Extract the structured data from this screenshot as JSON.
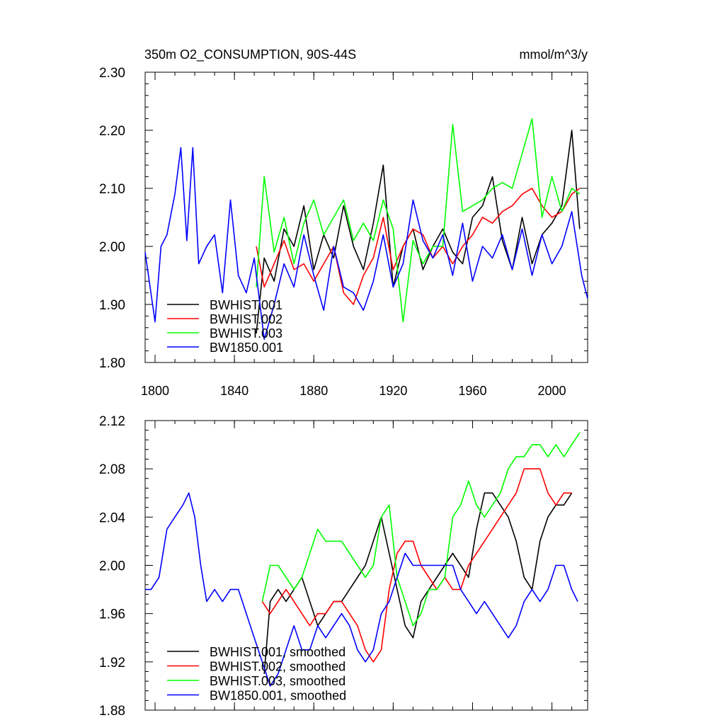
{
  "figure": {
    "title_left": "350m O2_CONSUMPTION, 90S-44S",
    "title_right": "mmol/m^3/y"
  },
  "chart_data": [
    {
      "type": "line",
      "xlim": [
        1795,
        2018
      ],
      "ylim": [
        1.8,
        2.3
      ],
      "xticks": [
        1800,
        1840,
        1880,
        1920,
        1960,
        2000
      ],
      "xtick_labels": [
        "1800",
        "1840",
        "1880",
        "1920",
        "1960",
        "2000"
      ],
      "yticks": [
        1.8,
        1.9,
        2.0,
        2.1,
        2.2,
        2.3
      ],
      "ytick_labels": [
        "1.80",
        "1.90",
        "2.00",
        "2.10",
        "2.20",
        "2.30"
      ],
      "legend_position": "bottom-left",
      "series": [
        {
          "name": "BWHIST.001",
          "color": "#000000",
          "x": [
            1851,
            1855,
            1860,
            1865,
            1870,
            1875,
            1880,
            1885,
            1890,
            1895,
            1900,
            1905,
            1910,
            1915,
            1920,
            1925,
            1930,
            1935,
            1940,
            1945,
            1950,
            1955,
            1960,
            1965,
            1970,
            1975,
            1980,
            1985,
            1990,
            1995,
            2000,
            2005,
            2010,
            2014
          ],
          "y": [
            1.85,
            1.98,
            1.94,
            2.03,
            2.0,
            2.07,
            1.96,
            2.02,
            1.98,
            2.07,
            2.0,
            1.96,
            2.04,
            2.14,
            1.93,
            2.0,
            2.03,
            1.96,
            2.0,
            2.03,
            1.99,
            1.97,
            2.05,
            2.07,
            2.12,
            2.01,
            1.96,
            2.05,
            1.97,
            2.02,
            2.04,
            2.07,
            2.2,
            2.03
          ]
        },
        {
          "name": "BWHIST.002",
          "color": "#ff0000",
          "x": [
            1851,
            1855,
            1860,
            1865,
            1870,
            1875,
            1880,
            1885,
            1890,
            1895,
            1900,
            1905,
            1910,
            1915,
            1920,
            1925,
            1930,
            1935,
            1940,
            1945,
            1950,
            1955,
            1960,
            1965,
            1970,
            1975,
            1980,
            1985,
            1990,
            1995,
            2000,
            2005,
            2010,
            2014
          ],
          "y": [
            2.0,
            1.93,
            1.97,
            2.01,
            1.96,
            1.97,
            1.94,
            1.97,
            2.0,
            1.92,
            1.9,
            1.95,
            1.98,
            2.05,
            1.96,
            2.0,
            2.03,
            2.02,
            1.98,
            2.0,
            1.97,
            2.0,
            2.02,
            2.05,
            2.04,
            2.06,
            2.07,
            2.09,
            2.1,
            2.07,
            2.05,
            2.06,
            2.09,
            2.1
          ]
        },
        {
          "name": "BWHIST.003",
          "color": "#00ff00",
          "x": [
            1851,
            1855,
            1860,
            1865,
            1870,
            1875,
            1880,
            1885,
            1890,
            1895,
            1900,
            1905,
            1910,
            1915,
            1920,
            1925,
            1930,
            1935,
            1940,
            1945,
            1950,
            1955,
            1960,
            1965,
            1970,
            1975,
            1980,
            1985,
            1990,
            1995,
            2000,
            2005,
            2010,
            2014
          ],
          "y": [
            1.93,
            2.12,
            1.99,
            2.05,
            1.97,
            2.04,
            2.08,
            2.02,
            2.05,
            2.08,
            2.01,
            2.04,
            2.01,
            2.08,
            2.03,
            1.87,
            2.01,
            1.97,
            2.0,
            2.0,
            2.21,
            2.06,
            2.07,
            2.08,
            2.1,
            2.11,
            2.1,
            2.16,
            2.22,
            2.05,
            2.12,
            2.06,
            2.1,
            2.09
          ]
        },
        {
          "name": "BW1850.001",
          "color": "#0000ff",
          "x": [
            1795,
            1800,
            1803,
            1806,
            1810,
            1813,
            1816,
            1819,
            1822,
            1826,
            1830,
            1834,
            1838,
            1842,
            1846,
            1850,
            1855,
            1860,
            1865,
            1870,
            1875,
            1880,
            1885,
            1890,
            1895,
            1900,
            1905,
            1910,
            1915,
            1920,
            1925,
            1930,
            1935,
            1940,
            1945,
            1950,
            1955,
            1960,
            1965,
            1970,
            1975,
            1980,
            1985,
            1990,
            1995,
            2000,
            2005,
            2010,
            2015,
            2018
          ],
          "y": [
            1.99,
            1.87,
            2.0,
            2.02,
            2.09,
            2.17,
            2.01,
            2.17,
            1.97,
            2.0,
            2.02,
            1.92,
            2.08,
            1.95,
            1.92,
            1.98,
            1.84,
            1.9,
            1.97,
            1.93,
            2.02,
            1.95,
            1.89,
            2.0,
            1.93,
            1.92,
            1.89,
            1.94,
            2.02,
            1.93,
            1.97,
            2.08,
            2.01,
            1.98,
            2.02,
            1.95,
            2.04,
            1.94,
            2.0,
            1.98,
            2.02,
            1.96,
            2.03,
            1.95,
            2.02,
            1.97,
            2.0,
            2.06,
            1.95,
            1.91
          ]
        }
      ]
    },
    {
      "type": "line",
      "xlim": [
        1795,
        2018
      ],
      "ylim": [
        1.88,
        2.12
      ],
      "xticks": [
        1800,
        1840,
        1880,
        1920,
        1960,
        2000
      ],
      "yticks": [
        1.88,
        1.92,
        1.96,
        2.0,
        2.04,
        2.08,
        2.12
      ],
      "ytick_labels": [
        "1.88",
        "1.92",
        "1.96",
        "2.00",
        "2.04",
        "2.08",
        "2.12"
      ],
      "legend_position": "bottom-left",
      "series": [
        {
          "name": "BWHIST.001, smoothed",
          "color": "#000000",
          "x": [
            1855,
            1858,
            1862,
            1866,
            1870,
            1874,
            1878,
            1882,
            1886,
            1890,
            1894,
            1898,
            1902,
            1906,
            1910,
            1914,
            1918,
            1922,
            1926,
            1930,
            1934,
            1938,
            1942,
            1946,
            1950,
            1954,
            1958,
            1962,
            1966,
            1970,
            1974,
            1978,
            1982,
            1986,
            1990,
            1994,
            1998,
            2002,
            2006,
            2010
          ],
          "y": [
            1.91,
            1.97,
            1.98,
            1.97,
            1.98,
            1.99,
            1.97,
            1.95,
            1.96,
            1.97,
            1.97,
            1.98,
            1.99,
            2.0,
            2.02,
            2.04,
            2.01,
            1.98,
            1.95,
            1.94,
            1.97,
            1.98,
            1.99,
            2.0,
            2.01,
            2.0,
            1.99,
            2.03,
            2.06,
            2.06,
            2.05,
            2.04,
            2.02,
            1.99,
            1.98,
            2.02,
            2.04,
            2.05,
            2.05,
            2.06
          ]
        },
        {
          "name": "BWHIST.002, smoothed",
          "color": "#ff0000",
          "x": [
            1854,
            1858,
            1862,
            1866,
            1870,
            1874,
            1878,
            1882,
            1886,
            1890,
            1894,
            1898,
            1902,
            1906,
            1910,
            1914,
            1918,
            1922,
            1926,
            1930,
            1934,
            1938,
            1942,
            1946,
            1950,
            1954,
            1958,
            1962,
            1966,
            1970,
            1974,
            1978,
            1982,
            1986,
            1990,
            1994,
            1998,
            2002,
            2006,
            2010
          ],
          "y": [
            1.97,
            1.96,
            1.97,
            1.98,
            1.97,
            1.96,
            1.95,
            1.96,
            1.96,
            1.97,
            1.97,
            1.96,
            1.95,
            1.93,
            1.92,
            1.93,
            1.98,
            2.01,
            2.02,
            2.02,
            2.0,
            1.99,
            1.98,
            1.99,
            1.98,
            1.98,
            2.0,
            2.01,
            2.02,
            2.03,
            2.04,
            2.05,
            2.06,
            2.08,
            2.08,
            2.08,
            2.06,
            2.05,
            2.06,
            2.06
          ]
        },
        {
          "name": "BWHIST.003, smoothed",
          "color": "#00ff00",
          "x": [
            1854,
            1858,
            1862,
            1866,
            1870,
            1874,
            1878,
            1882,
            1886,
            1890,
            1894,
            1898,
            1902,
            1906,
            1910,
            1914,
            1918,
            1922,
            1926,
            1930,
            1934,
            1938,
            1942,
            1946,
            1950,
            1954,
            1958,
            1962,
            1966,
            1970,
            1974,
            1978,
            1982,
            1986,
            1990,
            1994,
            1998,
            2002,
            2006,
            2010,
            2014
          ],
          "y": [
            1.97,
            2.0,
            2.0,
            1.99,
            1.98,
            1.99,
            2.01,
            2.03,
            2.02,
            2.02,
            2.02,
            2.01,
            2.0,
            1.99,
            2.0,
            2.04,
            2.05,
            1.99,
            1.97,
            1.95,
            1.96,
            1.98,
            1.98,
            1.99,
            2.04,
            2.05,
            2.07,
            2.05,
            2.04,
            2.05,
            2.06,
            2.08,
            2.09,
            2.09,
            2.1,
            2.1,
            2.09,
            2.1,
            2.09,
            2.1,
            2.11
          ]
        },
        {
          "name": "BW1850.001, smoothed",
          "color": "#0000ff",
          "x": [
            1795,
            1798,
            1802,
            1806,
            1810,
            1814,
            1817,
            1820,
            1823,
            1826,
            1830,
            1834,
            1838,
            1842,
            1846,
            1850,
            1854,
            1858,
            1862,
            1866,
            1870,
            1874,
            1878,
            1882,
            1886,
            1890,
            1894,
            1898,
            1902,
            1906,
            1910,
            1914,
            1918,
            1922,
            1926,
            1930,
            1934,
            1938,
            1942,
            1946,
            1950,
            1954,
            1958,
            1962,
            1966,
            1970,
            1974,
            1978,
            1982,
            1986,
            1990,
            1994,
            1998,
            2002,
            2006,
            2010,
            2013
          ],
          "y": [
            1.98,
            1.98,
            1.99,
            2.03,
            2.04,
            2.05,
            2.06,
            2.04,
            2.0,
            1.97,
            1.98,
            1.97,
            1.98,
            1.98,
            1.96,
            1.94,
            1.92,
            1.9,
            1.91,
            1.93,
            1.95,
            1.93,
            1.93,
            1.95,
            1.94,
            1.95,
            1.96,
            1.95,
            1.93,
            1.92,
            1.93,
            1.96,
            1.97,
            1.99,
            2.01,
            2.0,
            2.0,
            2.0,
            2.0,
            2.0,
            2.0,
            1.98,
            1.97,
            1.96,
            1.97,
            1.96,
            1.95,
            1.94,
            1.95,
            1.97,
            1.98,
            1.97,
            1.98,
            2.0,
            2.0,
            1.98,
            1.97
          ]
        }
      ]
    }
  ]
}
